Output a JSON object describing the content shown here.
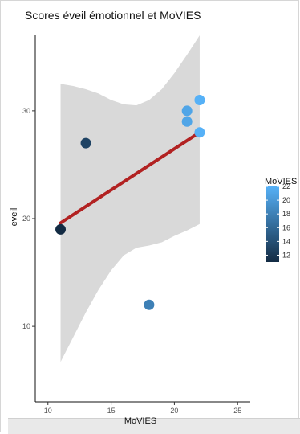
{
  "chart_data": {
    "type": "scatter",
    "title": "Scores éveil émotionnel et MoVIES",
    "xlabel": "MoVIES",
    "ylabel": "eveil",
    "xlim": [
      9,
      26
    ],
    "ylim": [
      3,
      37
    ],
    "x_ticks": [
      10,
      15,
      20,
      25
    ],
    "y_ticks": [
      10,
      20,
      30
    ],
    "points": [
      {
        "x": 11,
        "y": 19
      },
      {
        "x": 13,
        "y": 27
      },
      {
        "x": 18,
        "y": 12
      },
      {
        "x": 21,
        "y": 29
      },
      {
        "x": 21,
        "y": 30
      },
      {
        "x": 22,
        "y": 31
      },
      {
        "x": 22,
        "y": 28
      }
    ],
    "fit_line": {
      "x": [
        11,
        22
      ],
      "y": [
        19.6,
        28.0
      ],
      "color": "#b22222"
    },
    "confidence_band": {
      "x": [
        11,
        12,
        13,
        14,
        15,
        16,
        17,
        18,
        19,
        20,
        21,
        22
      ],
      "upper": [
        32.5,
        32.3,
        32.0,
        31.6,
        31.0,
        30.6,
        30.5,
        31.0,
        32.0,
        33.5,
        35.2,
        37.0
      ],
      "lower": [
        6.7,
        9.0,
        11.3,
        13.4,
        15.2,
        16.6,
        17.3,
        17.5,
        17.8,
        18.4,
        18.9,
        19.5
      ],
      "color": "#d9d9d9"
    },
    "color_scale": {
      "name": "MoVIES",
      "min": 11,
      "max": 22,
      "low_color": "#132b43",
      "high_color": "#56b1f7",
      "ticks": [
        22,
        20,
        18,
        16,
        14,
        12
      ]
    },
    "grid": false,
    "legend_position": "right"
  }
}
